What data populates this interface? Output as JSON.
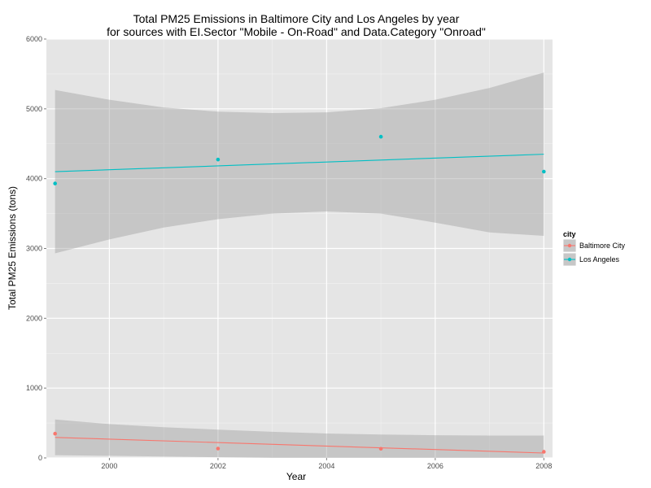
{
  "chart_data": {
    "type": "scatter",
    "title": "Total PM25 Emissions in Baltimore City and Los Angeles by year",
    "subtitle": "for sources with EI.Sector \"Mobile - On-Road\" and Data.Category \"Onroad\"",
    "xlabel": "Year",
    "ylabel": "Total PM25 Emissions (tons)",
    "xlim": [
      1998.84,
      2008.16
    ],
    "ylim": [
      0,
      6000
    ],
    "x_ticks": [
      2000,
      2002,
      2004,
      2006,
      2008
    ],
    "y_ticks": [
      0,
      1000,
      2000,
      3000,
      4000,
      5000,
      6000
    ],
    "x_tick_labels": [
      "2000",
      "2002",
      "2004",
      "2006",
      "2008"
    ],
    "y_tick_labels": [
      "0",
      "1000",
      "2000",
      "3000",
      "4000",
      "5000",
      "6000"
    ],
    "grid": true,
    "legend": {
      "title": "city",
      "position": "right"
    },
    "series": [
      {
        "name": "Baltimore City",
        "color": "#F8766D",
        "points": [
          {
            "x": 1999,
            "y": 347
          },
          {
            "x": 2002,
            "y": 134
          },
          {
            "x": 2005,
            "y": 131
          },
          {
            "x": 2008,
            "y": 88
          }
        ],
        "fit_line": {
          "x": [
            1999,
            2008
          ],
          "y": [
            294,
            70
          ]
        },
        "confidence_band": {
          "x": [
            1999,
            2000,
            2001,
            2002,
            2003,
            2004,
            2005,
            2006,
            2007,
            2008
          ],
          "upper": [
            550,
            485,
            440,
            405,
            375,
            350,
            335,
            325,
            320,
            320
          ],
          "lower": [
            40,
            30,
            20,
            10,
            0,
            0,
            0,
            0,
            0,
            0
          ]
        }
      },
      {
        "name": "Los Angeles",
        "color": "#00BFC4",
        "points": [
          {
            "x": 1999,
            "y": 3931
          },
          {
            "x": 2002,
            "y": 4274
          },
          {
            "x": 2005,
            "y": 4601
          },
          {
            "x": 2008,
            "y": 4101
          }
        ],
        "fit_line": {
          "x": [
            1999,
            2008
          ],
          "y": [
            4100,
            4350
          ]
        },
        "confidence_band": {
          "x": [
            1999,
            2000,
            2001,
            2002,
            2003,
            2004,
            2005,
            2006,
            2007,
            2008
          ],
          "upper": [
            5270,
            5130,
            5020,
            4960,
            4940,
            4950,
            5010,
            5130,
            5300,
            5520
          ],
          "lower": [
            2930,
            3130,
            3300,
            3420,
            3500,
            3530,
            3500,
            3370,
            3230,
            3180
          ]
        }
      }
    ],
    "colors": {
      "panel_background": "#E5E5E5",
      "grid_major": "#FFFFFF",
      "grid_minor": "#F2F2F2",
      "band_fill": "#999999"
    }
  }
}
